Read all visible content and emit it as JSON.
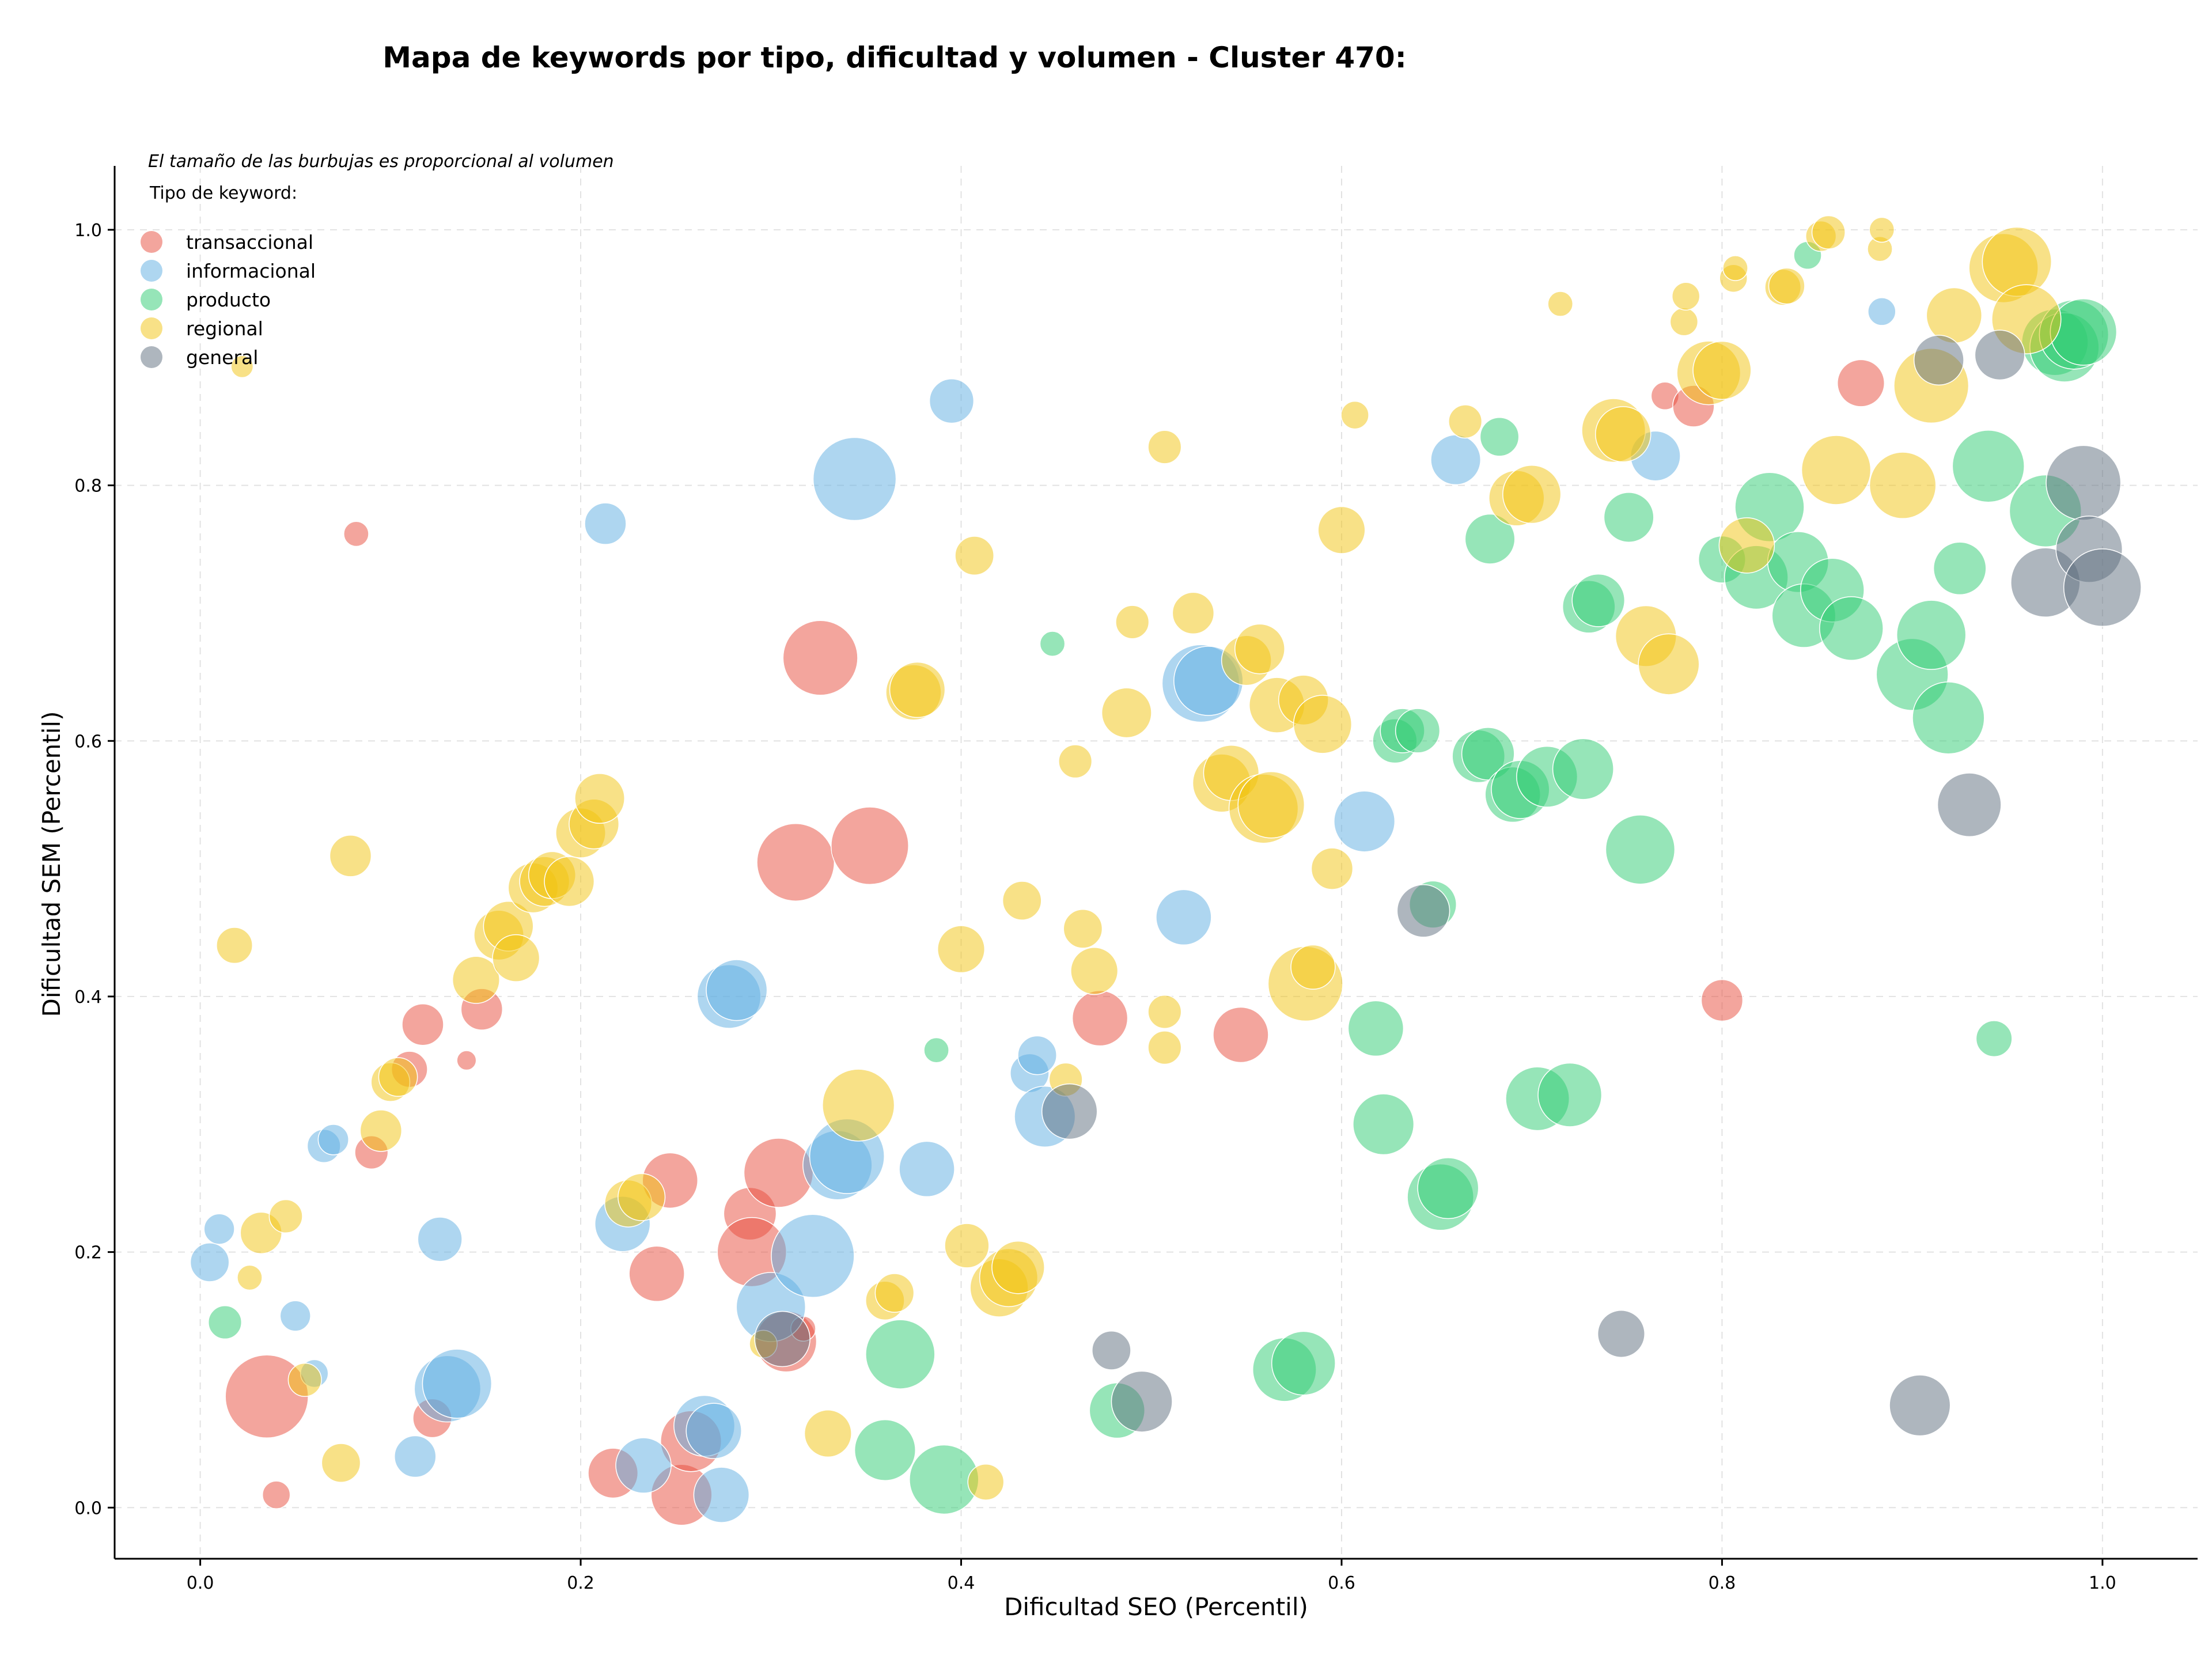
{
  "chart_data": {
    "type": "scatter",
    "title": "Mapa de keywords por tipo, dificultad y volumen - Cluster 470:",
    "xlabel": "Dificultad SEO (Percentil)",
    "ylabel": "Dificultad SEM (Percentil)",
    "xlim": [
      -0.045,
      1.05
    ],
    "ylim": [
      -0.04,
      1.05
    ],
    "xticks": [
      "0.0",
      "0.2",
      "0.4",
      "0.6",
      "0.8",
      "1.0"
    ],
    "yticks": [
      "0.0",
      "0.2",
      "0.4",
      "0.6",
      "0.8",
      "1.0"
    ],
    "grid": true,
    "legend_placement": "top-left",
    "size_note": "El tamaño de las burbujas es proporcional al volumen",
    "legend_title": "Tipo de keyword:",
    "series": [
      {
        "name": "transaccional",
        "color": "#e74c3c",
        "points": [
          [
            0.035,
            0.087,
            30
          ],
          [
            0.04,
            0.01,
            10
          ],
          [
            0.082,
            0.762,
            9
          ],
          [
            0.09,
            0.278,
            12
          ],
          [
            0.11,
            0.343,
            13
          ],
          [
            0.117,
            0.378,
            15
          ],
          [
            0.122,
            0.07,
            14
          ],
          [
            0.14,
            0.35,
            7
          ],
          [
            0.148,
            0.39,
            15
          ],
          [
            0.217,
            0.027,
            18
          ],
          [
            0.24,
            0.183,
            20
          ],
          [
            0.247,
            0.256,
            20
          ],
          [
            0.253,
            0.01,
            22
          ],
          [
            0.258,
            0.052,
            22
          ],
          [
            0.289,
            0.23,
            19
          ],
          [
            0.29,
            0.2,
            25
          ],
          [
            0.304,
            0.262,
            25
          ],
          [
            0.308,
            0.13,
            22
          ],
          [
            0.317,
            0.14,
            9
          ],
          [
            0.313,
            0.505,
            28
          ],
          [
            0.326,
            0.665,
            27
          ],
          [
            0.352,
            0.518,
            28
          ],
          [
            0.473,
            0.383,
            20
          ],
          [
            0.547,
            0.37,
            20
          ],
          [
            0.77,
            0.87,
            10
          ],
          [
            0.785,
            0.862,
            15
          ],
          [
            0.8,
            0.397,
            15
          ],
          [
            0.873,
            0.88,
            17
          ]
        ]
      },
      {
        "name": "informacional",
        "color": "#5dade2",
        "points": [
          [
            0.005,
            0.192,
            14
          ],
          [
            0.01,
            0.218,
            11
          ],
          [
            0.05,
            0.15,
            11
          ],
          [
            0.06,
            0.105,
            10
          ],
          [
            0.065,
            0.283,
            12
          ],
          [
            0.07,
            0.288,
            11
          ],
          [
            0.113,
            0.04,
            15
          ],
          [
            0.126,
            0.21,
            16
          ],
          [
            0.13,
            0.093,
            24
          ],
          [
            0.135,
            0.097,
            25
          ],
          [
            0.213,
            0.77,
            15
          ],
          [
            0.222,
            0.222,
            20
          ],
          [
            0.233,
            0.033,
            20
          ],
          [
            0.265,
            0.064,
            22
          ],
          [
            0.27,
            0.06,
            20
          ],
          [
            0.274,
            0.01,
            20
          ],
          [
            0.278,
            0.4,
            23
          ],
          [
            0.282,
            0.405,
            22
          ],
          [
            0.3,
            0.157,
            25
          ],
          [
            0.322,
            0.197,
            30
          ],
          [
            0.335,
            0.268,
            25
          ],
          [
            0.34,
            0.275,
            27
          ],
          [
            0.344,
            0.805,
            30
          ],
          [
            0.382,
            0.265,
            20
          ],
          [
            0.395,
            0.866,
            16
          ],
          [
            0.436,
            0.34,
            14
          ],
          [
            0.44,
            0.354,
            14
          ],
          [
            0.444,
            0.306,
            22
          ],
          [
            0.517,
            0.462,
            20
          ],
          [
            0.526,
            0.645,
            28
          ],
          [
            0.53,
            0.647,
            25
          ],
          [
            0.612,
            0.537,
            22
          ],
          [
            0.66,
            0.82,
            18
          ],
          [
            0.765,
            0.823,
            18
          ],
          [
            0.884,
            0.936,
            10
          ]
        ]
      },
      {
        "name": "producto",
        "color": "#2ecc71",
        "points": [
          [
            0.013,
            0.145,
            12
          ],
          [
            0.36,
            0.045,
            22
          ],
          [
            0.368,
            0.12,
            25
          ],
          [
            0.387,
            0.358,
            9
          ],
          [
            0.391,
            0.022,
            25
          ],
          [
            0.448,
            0.676,
            9
          ],
          [
            0.482,
            0.076,
            20
          ],
          [
            0.57,
            0.108,
            23
          ],
          [
            0.58,
            0.113,
            23
          ],
          [
            0.618,
            0.375,
            20
          ],
          [
            0.622,
            0.3,
            22
          ],
          [
            0.628,
            0.6,
            16
          ],
          [
            0.632,
            0.608,
            16
          ],
          [
            0.64,
            0.608,
            16
          ],
          [
            0.648,
            0.472,
            17
          ],
          [
            0.652,
            0.243,
            24
          ],
          [
            0.656,
            0.25,
            22
          ],
          [
            0.672,
            0.588,
            19
          ],
          [
            0.677,
            0.59,
            19
          ],
          [
            0.678,
            0.758,
            18
          ],
          [
            0.683,
            0.838,
            14
          ],
          [
            0.69,
            0.558,
            20
          ],
          [
            0.694,
            0.562,
            21
          ],
          [
            0.703,
            0.32,
            23
          ],
          [
            0.708,
            0.572,
            22
          ],
          [
            0.72,
            0.323,
            23
          ],
          [
            0.727,
            0.578,
            22
          ],
          [
            0.73,
            0.705,
            19
          ],
          [
            0.735,
            0.71,
            19
          ],
          [
            0.751,
            0.775,
            18
          ],
          [
            0.757,
            0.515,
            25
          ],
          [
            0.8,
            0.742,
            17
          ],
          [
            0.818,
            0.728,
            23
          ],
          [
            0.825,
            0.783,
            25
          ],
          [
            0.84,
            0.74,
            22
          ],
          [
            0.843,
            0.698,
            23
          ],
          [
            0.858,
            0.718,
            23
          ],
          [
            0.868,
            0.688,
            23
          ],
          [
            0.9,
            0.652,
            26
          ],
          [
            0.91,
            0.683,
            25
          ],
          [
            0.919,
            0.618,
            26
          ],
          [
            0.925,
            0.735,
            19
          ],
          [
            0.94,
            0.815,
            26
          ],
          [
            0.943,
            0.367,
            13
          ],
          [
            0.97,
            0.78,
            26
          ],
          [
            0.975,
            0.912,
            24
          ],
          [
            0.98,
            0.908,
            25
          ],
          [
            0.985,
            0.918,
            25
          ],
          [
            0.99,
            0.92,
            24
          ],
          [
            0.845,
            0.98,
            10
          ]
        ]
      },
      {
        "name": "regional",
        "color": "#f1c40f",
        "points": [
          [
            0.018,
            0.44,
            13
          ],
          [
            0.022,
            0.893,
            8
          ],
          [
            0.032,
            0.215,
            15
          ],
          [
            0.045,
            0.228,
            12
          ],
          [
            0.055,
            0.1,
            12
          ],
          [
            0.026,
            0.18,
            9
          ],
          [
            0.074,
            0.035,
            14
          ],
          [
            0.079,
            0.51,
            15
          ],
          [
            0.095,
            0.295,
            15
          ],
          [
            0.1,
            0.333,
            14
          ],
          [
            0.104,
            0.337,
            14
          ],
          [
            0.145,
            0.413,
            17
          ],
          [
            0.157,
            0.448,
            18
          ],
          [
            0.162,
            0.455,
            18
          ],
          [
            0.166,
            0.43,
            17
          ],
          [
            0.175,
            0.485,
            18
          ],
          [
            0.181,
            0.49,
            18
          ],
          [
            0.185,
            0.495,
            17
          ],
          [
            0.194,
            0.49,
            18
          ],
          [
            0.2,
            0.528,
            18
          ],
          [
            0.207,
            0.535,
            18
          ],
          [
            0.21,
            0.555,
            18
          ],
          [
            0.225,
            0.238,
            17
          ],
          [
            0.232,
            0.243,
            17
          ],
          [
            0.296,
            0.128,
            10
          ],
          [
            0.33,
            0.058,
            17
          ],
          [
            0.346,
            0.315,
            26
          ],
          [
            0.36,
            0.162,
            14
          ],
          [
            0.365,
            0.168,
            14
          ],
          [
            0.375,
            0.638,
            20
          ],
          [
            0.377,
            0.64,
            20
          ],
          [
            0.4,
            0.437,
            17
          ],
          [
            0.403,
            0.205,
            16
          ],
          [
            0.407,
            0.745,
            14
          ],
          [
            0.413,
            0.02,
            13
          ],
          [
            0.42,
            0.172,
            21
          ],
          [
            0.425,
            0.18,
            21
          ],
          [
            0.43,
            0.188,
            19
          ],
          [
            0.432,
            0.475,
            14
          ],
          [
            0.455,
            0.335,
            12
          ],
          [
            0.46,
            0.584,
            12
          ],
          [
            0.464,
            0.453,
            14
          ],
          [
            0.47,
            0.42,
            17
          ],
          [
            0.487,
            0.622,
            18
          ],
          [
            0.49,
            0.693,
            12
          ],
          [
            0.507,
            0.83,
            12
          ],
          [
            0.507,
            0.36,
            12
          ],
          [
            0.507,
            0.388,
            12
          ],
          [
            0.522,
            0.7,
            15
          ],
          [
            0.537,
            0.567,
            21
          ],
          [
            0.542,
            0.575,
            20
          ],
          [
            0.55,
            0.663,
            18
          ],
          [
            0.557,
            0.672,
            18
          ],
          [
            0.559,
            0.547,
            25
          ],
          [
            0.563,
            0.55,
            24
          ],
          [
            0.566,
            0.628,
            20
          ],
          [
            0.58,
            0.632,
            18
          ],
          [
            0.581,
            0.41,
            27
          ],
          [
            0.585,
            0.423,
            16
          ],
          [
            0.59,
            0.613,
            21
          ],
          [
            0.595,
            0.5,
            15
          ],
          [
            0.6,
            0.765,
            17
          ],
          [
            0.607,
            0.855,
            10
          ],
          [
            0.665,
            0.85,
            12
          ],
          [
            0.692,
            0.79,
            20
          ],
          [
            0.7,
            0.793,
            21
          ],
          [
            0.743,
            0.843,
            23
          ],
          [
            0.748,
            0.84,
            20
          ],
          [
            0.76,
            0.682,
            22
          ],
          [
            0.772,
            0.66,
            22
          ],
          [
            0.78,
            0.928,
            10
          ],
          [
            0.781,
            0.948,
            10
          ],
          [
            0.793,
            0.888,
            23
          ],
          [
            0.8,
            0.89,
            21
          ],
          [
            0.806,
            0.962,
            10
          ],
          [
            0.807,
            0.97,
            9
          ],
          [
            0.813,
            0.753,
            20
          ],
          [
            0.832,
            0.955,
            13
          ],
          [
            0.834,
            0.956,
            13
          ],
          [
            0.852,
            0.995,
            11
          ],
          [
            0.856,
            0.998,
            12
          ],
          [
            0.86,
            0.812,
            25
          ],
          [
            0.883,
            0.985,
            9
          ],
          [
            0.884,
            1.0,
            9
          ],
          [
            0.895,
            0.8,
            24
          ],
          [
            0.91,
            0.878,
            27
          ],
          [
            0.922,
            0.933,
            20
          ],
          [
            0.948,
            0.97,
            25
          ],
          [
            0.955,
            0.975,
            25
          ],
          [
            0.96,
            0.93,
            25
          ],
          [
            0.715,
            0.942,
            9
          ]
        ]
      },
      {
        "name": "general",
        "color": "#5d6d7e",
        "points": [
          [
            0.306,
            0.132,
            20
          ],
          [
            0.457,
            0.31,
            20
          ],
          [
            0.479,
            0.123,
            14
          ],
          [
            0.495,
            0.083,
            22
          ],
          [
            0.643,
            0.467,
            19
          ],
          [
            0.747,
            0.136,
            17
          ],
          [
            0.904,
            0.08,
            22
          ],
          [
            0.914,
            0.898,
            18
          ],
          [
            0.93,
            0.55,
            23
          ],
          [
            0.946,
            0.902,
            18
          ],
          [
            0.97,
            0.724,
            25
          ],
          [
            0.99,
            0.802,
            27
          ],
          [
            0.993,
            0.75,
            24
          ],
          [
            1.0,
            0.72,
            28
          ]
        ]
      }
    ]
  }
}
